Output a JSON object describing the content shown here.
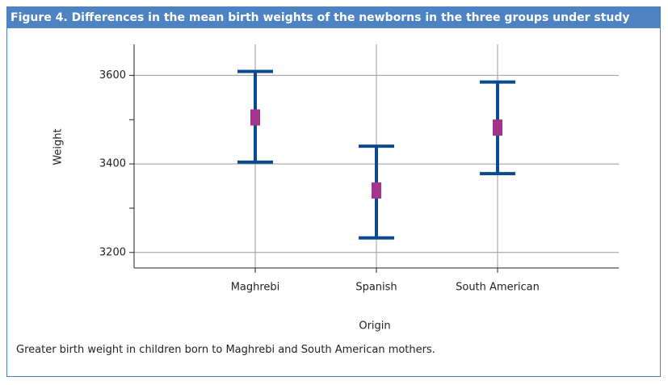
{
  "header": {
    "label": "Figure 4.",
    "title": "Differences in the mean birth weights of the newborns in the three groups under study"
  },
  "chart_data": {
    "type": "errorbar",
    "categories": [
      "Maghrebi",
      "Spanish",
      "South American"
    ],
    "values": [
      3505,
      3340,
      3482
    ],
    "lower": [
      3404,
      3233,
      3378
    ],
    "upper": [
      3609,
      3440,
      3585
    ],
    "whisker_color": "#0b4a8f",
    "mean_color": "#a3358e",
    "ylim": [
      3165,
      3670
    ],
    "yticks": [
      3200,
      3400,
      3600
    ],
    "minor_yticks": [
      3300,
      3500
    ],
    "grid": true,
    "x_label": "Origin",
    "y_label": "Weight"
  },
  "caption": "Greater birth weight in children born to Maghrebi and South American mothers."
}
